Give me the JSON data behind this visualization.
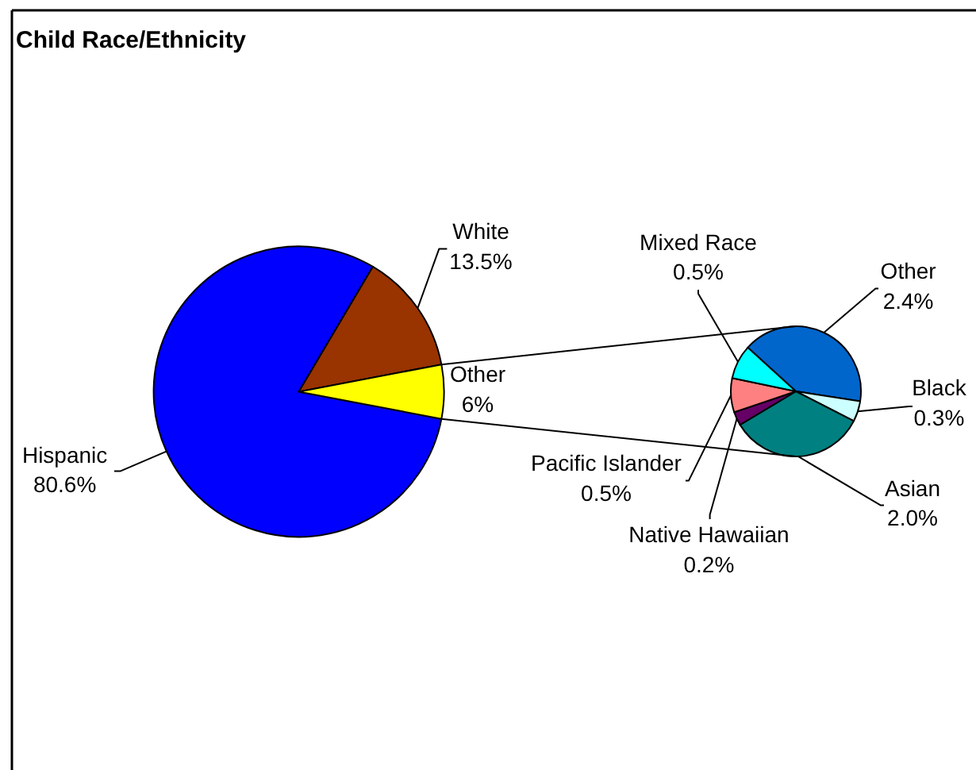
{
  "chart_data": [
    {
      "type": "pie",
      "title": "Child Race/Ethnicity",
      "categories": [
        "Hispanic",
        "White",
        "Other"
      ],
      "values": [
        80.6,
        13.5,
        6
      ],
      "colors": [
        "#0000ff",
        "#993300",
        "#ffff00"
      ],
      "value_labels": [
        "80.6%",
        "13.5%",
        "6%"
      ]
    },
    {
      "type": "pie",
      "categories": [
        "Other",
        "Black",
        "Asian",
        "Native Hawaiian",
        "Pacific Islander",
        "Mixed Race"
      ],
      "values": [
        2.4,
        0.3,
        2.0,
        0.2,
        0.5,
        0.5
      ],
      "colors": [
        "#0066cc",
        "#ccffff",
        "#008080",
        "#660066",
        "#ff8080",
        "#00ffff"
      ],
      "value_labels": [
        "2.4%",
        "0.3%",
        "2.0%",
        "0.2%",
        "0.5%",
        "0.5%"
      ]
    }
  ]
}
